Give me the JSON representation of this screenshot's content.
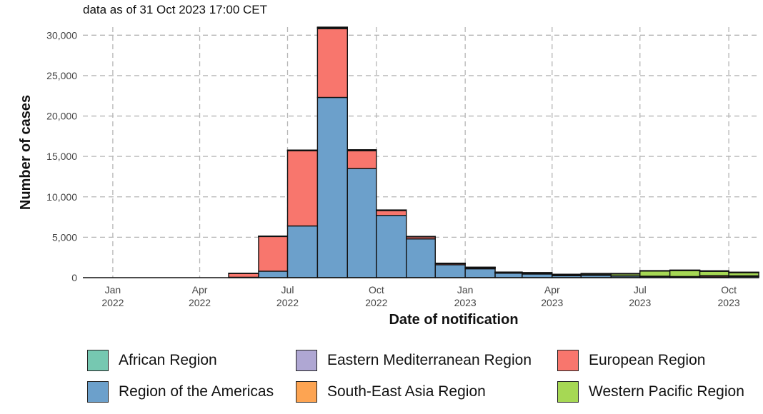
{
  "chart_data": {
    "type": "bar",
    "stacked": true,
    "subtitle": "data as of 31 Oct 2023 17:00 CET",
    "xlabel": "Date of notification",
    "ylabel": "Number of cases",
    "ylim": [
      0,
      31000
    ],
    "yticks": [
      0,
      5000,
      10000,
      15000,
      20000,
      25000,
      30000
    ],
    "ytick_labels": [
      "0",
      "5,000",
      "10,000",
      "15,000",
      "20,000",
      "25,000",
      "30,000"
    ],
    "xticks": [
      {
        "date": "2022-01-01",
        "line1": "Jan",
        "line2": "2022"
      },
      {
        "date": "2022-04-01",
        "line1": "Apr",
        "line2": "2022"
      },
      {
        "date": "2022-07-01",
        "line1": "Jul",
        "line2": "2022"
      },
      {
        "date": "2022-10-01",
        "line1": "Oct",
        "line2": "2022"
      },
      {
        "date": "2023-01-01",
        "line1": "Jan",
        "line2": "2023"
      },
      {
        "date": "2023-04-01",
        "line1": "Apr",
        "line2": "2023"
      },
      {
        "date": "2023-07-01",
        "line1": "Jul",
        "line2": "2023"
      },
      {
        "date": "2023-10-01",
        "line1": "Oct",
        "line2": "2023"
      }
    ],
    "categories": [
      "2021-12",
      "2022-01",
      "2022-02",
      "2022-03",
      "2022-04",
      "2022-05",
      "2022-06",
      "2022-07",
      "2022-08",
      "2022-09",
      "2022-10",
      "2022-11",
      "2022-12",
      "2023-01",
      "2023-02",
      "2023-03",
      "2023-04",
      "2023-05",
      "2023-06",
      "2023-07",
      "2023-08",
      "2023-09",
      "2023-10"
    ],
    "series": [
      {
        "name": "Region of the Americas",
        "color": "#6CA0CB",
        "values": [
          0,
          0,
          0,
          0,
          0,
          50,
          800,
          6400,
          22300,
          13500,
          7700,
          4800,
          1600,
          1100,
          550,
          450,
          250,
          300,
          200,
          150,
          100,
          100,
          150
        ]
      },
      {
        "name": "European Region",
        "color": "#F8766D",
        "values": [
          0,
          0,
          0,
          0,
          0,
          500,
          4300,
          9300,
          8500,
          2200,
          600,
          250,
          150,
          100,
          50,
          50,
          30,
          30,
          30,
          30,
          40,
          150,
          80
        ]
      },
      {
        "name": "Western Pacific Region",
        "color": "#A6D854",
        "values": [
          0,
          0,
          0,
          0,
          0,
          0,
          0,
          0,
          0,
          0,
          0,
          0,
          0,
          50,
          50,
          80,
          100,
          150,
          250,
          650,
          750,
          550,
          400
        ]
      },
      {
        "name": "African Region",
        "color": "#76C8B1",
        "values": [
          0,
          0,
          0,
          0,
          0,
          5,
          30,
          60,
          150,
          100,
          60,
          40,
          30,
          30,
          30,
          30,
          30,
          30,
          30,
          30,
          30,
          30,
          30
        ]
      },
      {
        "name": "Eastern Mediterranean Region",
        "color": "#AFA7D3",
        "values": [
          0,
          0,
          0,
          0,
          0,
          0,
          10,
          10,
          20,
          10,
          10,
          5,
          5,
          5,
          5,
          5,
          5,
          5,
          5,
          5,
          5,
          5,
          5
        ]
      },
      {
        "name": "South-East Asia Region",
        "color": "#FDA452",
        "values": [
          0,
          0,
          0,
          0,
          0,
          0,
          10,
          20,
          30,
          20,
          10,
          10,
          10,
          10,
          10,
          10,
          10,
          10,
          10,
          10,
          10,
          10,
          10
        ]
      }
    ],
    "grid": true,
    "legend_position": "bottom",
    "legend": [
      {
        "name": "African Region",
        "color": "#76C8B1"
      },
      {
        "name": "Eastern Mediterranean Region",
        "color": "#AFA7D3"
      },
      {
        "name": "European Region",
        "color": "#F8766D"
      },
      {
        "name": "Region of the Americas",
        "color": "#6CA0CB"
      },
      {
        "name": "South-East Asia Region",
        "color": "#FDA452"
      },
      {
        "name": "Western Pacific Region",
        "color": "#A6D854"
      }
    ]
  }
}
